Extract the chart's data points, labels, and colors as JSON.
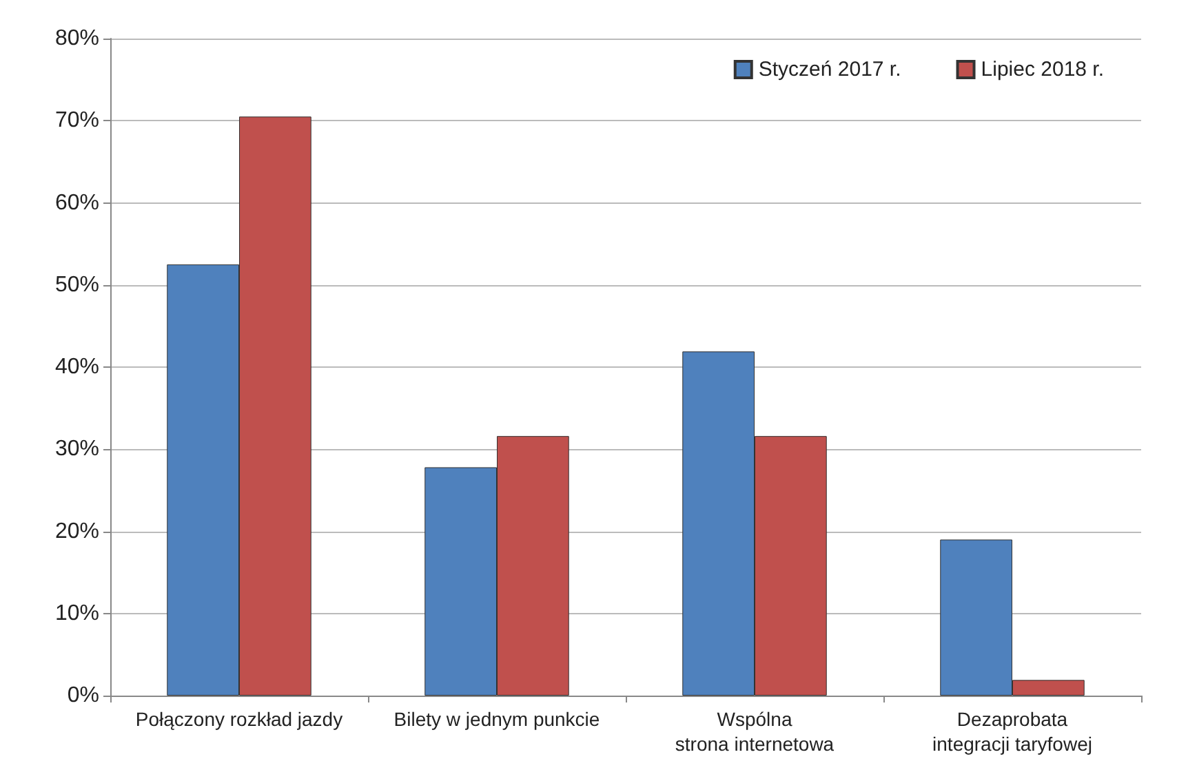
{
  "chart_data": {
    "type": "bar",
    "categories": [
      "Połączony rozkład jazdy",
      "Bilety w jednym punkcie",
      "Wspólna\nstrona internetowa",
      "Dezaprobata\nintegracji taryfowej"
    ],
    "series": [
      {
        "name": "Styczeń 2017 r.",
        "color": "#4f81bd",
        "values": [
          52.5,
          27.8,
          41.9,
          19.0
        ]
      },
      {
        "name": "Lipiec 2018 r.",
        "color": "#c0504d",
        "values": [
          70.5,
          31.6,
          31.6,
          1.9
        ]
      }
    ],
    "ylim": [
      0,
      80
    ],
    "yticks": [
      {
        "value": 0,
        "label": "0%"
      },
      {
        "value": 10,
        "label": "10%"
      },
      {
        "value": 20,
        "label": "20%"
      },
      {
        "value": 30,
        "label": "30%"
      },
      {
        "value": 40,
        "label": "40%"
      },
      {
        "value": 50,
        "label": "50%"
      },
      {
        "value": 60,
        "label": "60%"
      },
      {
        "value": 70,
        "label": "70%"
      },
      {
        "value": 80,
        "label": "80%"
      }
    ],
    "grid": "y",
    "legend": "top right"
  }
}
